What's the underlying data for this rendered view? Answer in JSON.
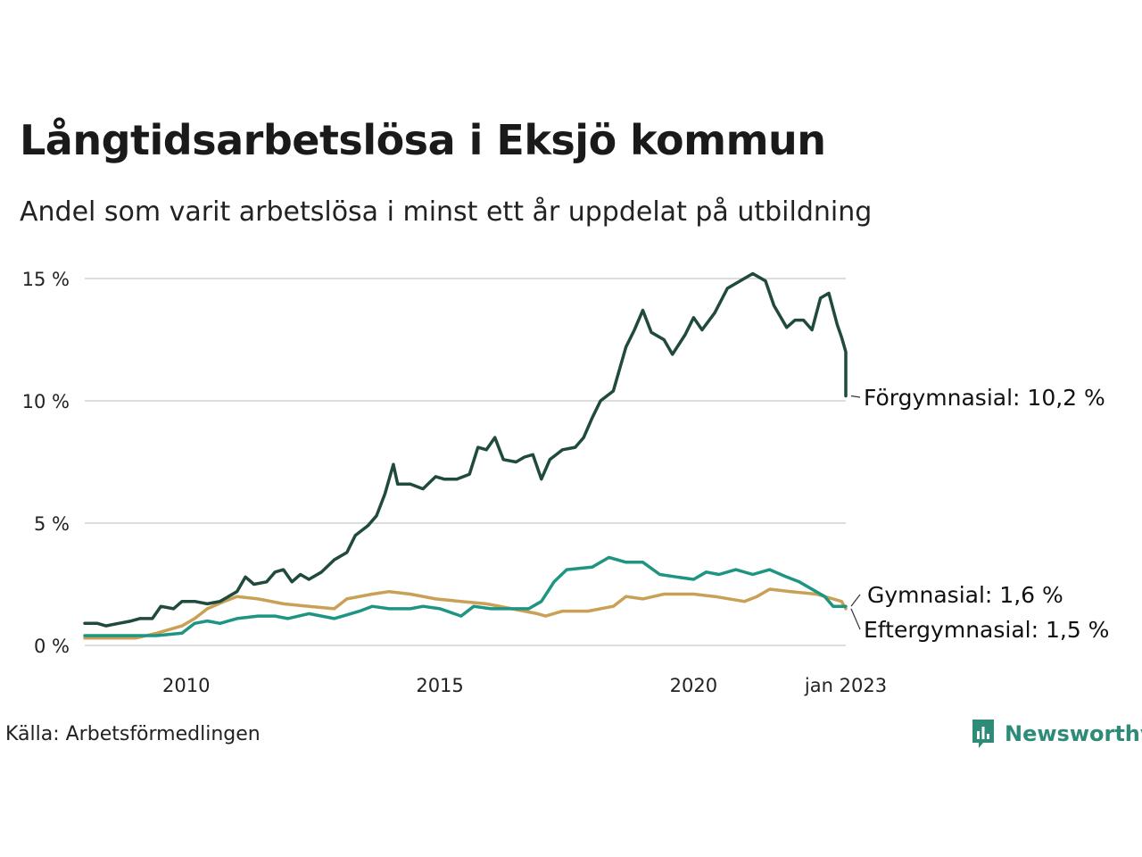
{
  "title": "Långtidsarbetslösa i Eksjö kommun",
  "subtitle": "Andel som varit arbetslösa i minst ett år uppdelat på utbildning",
  "source": "Källa: Arbetsförmedlingen",
  "brand": "Newsworthy",
  "colors": {
    "forgymnasial": "#1f4a3c",
    "gymnasial": "#1e9583",
    "eftergymnasial": "#c9a055",
    "grid": "#dddddd",
    "brand": "#2e8b78"
  },
  "chart_data": {
    "type": "line",
    "title": "Långtidsarbetslösa i Eksjö kommun",
    "subtitle": "Andel som varit arbetslösa i minst ett år uppdelat på utbildning",
    "x_range": [
      "2008-01",
      "2023-01"
    ],
    "ylim": [
      0,
      15
    ],
    "y_ticks": [
      0,
      5,
      10,
      15
    ],
    "y_tick_labels": [
      "0 %",
      "5 %",
      "10 %",
      "15 %"
    ],
    "x_ticks": [
      "2010-01",
      "2015-01",
      "2020-01",
      "2023-01"
    ],
    "x_tick_labels": [
      "2010",
      "2015",
      "2020",
      "jan 2023"
    ],
    "grid": true,
    "legend": "end-of-line labels",
    "series": [
      {
        "key": "forgymnasial",
        "end_label": "Förgymnasial: 10,2 %",
        "points": [
          [
            "2008-01",
            0.9
          ],
          [
            "2008-04",
            0.9
          ],
          [
            "2008-06",
            0.8
          ],
          [
            "2008-09",
            0.9
          ],
          [
            "2008-12",
            1.0
          ],
          [
            "2009-02",
            1.1
          ],
          [
            "2009-05",
            1.1
          ],
          [
            "2009-07",
            1.6
          ],
          [
            "2009-10",
            1.5
          ],
          [
            "2009-12",
            1.8
          ],
          [
            "2010-03",
            1.8
          ],
          [
            "2010-06",
            1.7
          ],
          [
            "2010-09",
            1.8
          ],
          [
            "2010-11",
            2.0
          ],
          [
            "2011-01",
            2.2
          ],
          [
            "2011-03",
            2.8
          ],
          [
            "2011-05",
            2.5
          ],
          [
            "2011-08",
            2.6
          ],
          [
            "2011-10",
            3.0
          ],
          [
            "2011-12",
            3.1
          ],
          [
            "2012-02",
            2.6
          ],
          [
            "2012-04",
            2.9
          ],
          [
            "2012-06",
            2.7
          ],
          [
            "2012-09",
            3.0
          ],
          [
            "2012-12",
            3.5
          ],
          [
            "2013-03",
            3.8
          ],
          [
            "2013-05",
            4.5
          ],
          [
            "2013-08",
            4.9
          ],
          [
            "2013-10",
            5.3
          ],
          [
            "2013-12",
            6.2
          ],
          [
            "2014-02",
            7.4
          ],
          [
            "2014-03",
            6.6
          ],
          [
            "2014-06",
            6.6
          ],
          [
            "2014-09",
            6.4
          ],
          [
            "2014-12",
            6.9
          ],
          [
            "2015-02",
            6.8
          ],
          [
            "2015-05",
            6.8
          ],
          [
            "2015-08",
            7.0
          ],
          [
            "2015-10",
            8.1
          ],
          [
            "2015-12",
            8.0
          ],
          [
            "2016-02",
            8.5
          ],
          [
            "2016-04",
            7.6
          ],
          [
            "2016-07",
            7.5
          ],
          [
            "2016-09",
            7.7
          ],
          [
            "2016-11",
            7.8
          ],
          [
            "2017-01",
            6.8
          ],
          [
            "2017-03",
            7.6
          ],
          [
            "2017-06",
            8.0
          ],
          [
            "2017-09",
            8.1
          ],
          [
            "2017-11",
            8.5
          ],
          [
            "2018-01",
            9.3
          ],
          [
            "2018-03",
            10.0
          ],
          [
            "2018-06",
            10.4
          ],
          [
            "2018-09",
            12.2
          ],
          [
            "2018-11",
            12.9
          ],
          [
            "2019-01",
            13.7
          ],
          [
            "2019-03",
            12.8
          ],
          [
            "2019-06",
            12.5
          ],
          [
            "2019-08",
            11.9
          ],
          [
            "2019-11",
            12.7
          ],
          [
            "2020-01",
            13.4
          ],
          [
            "2020-03",
            12.9
          ],
          [
            "2020-06",
            13.6
          ],
          [
            "2020-09",
            14.6
          ],
          [
            "2020-12",
            14.9
          ],
          [
            "2021-03",
            15.2
          ],
          [
            "2021-06",
            14.9
          ],
          [
            "2021-08",
            13.9
          ],
          [
            "2021-11",
            13.0
          ],
          [
            "2022-01",
            13.3
          ],
          [
            "2022-03",
            13.3
          ],
          [
            "2022-05",
            12.9
          ],
          [
            "2022-07",
            14.2
          ],
          [
            "2022-09",
            14.4
          ],
          [
            "2022-11",
            13.1
          ],
          [
            "2022-12",
            12.6
          ],
          [
            "2023-01",
            12.0
          ],
          [
            "2023-01",
            10.2
          ]
        ]
      },
      {
        "key": "gymnasial",
        "end_label": "Gymnasial:  1,6 %",
        "points": [
          [
            "2008-01",
            0.4
          ],
          [
            "2008-06",
            0.4
          ],
          [
            "2008-12",
            0.4
          ],
          [
            "2009-06",
            0.4
          ],
          [
            "2009-12",
            0.5
          ],
          [
            "2010-03",
            0.9
          ],
          [
            "2010-06",
            1.0
          ],
          [
            "2010-09",
            0.9
          ],
          [
            "2011-01",
            1.1
          ],
          [
            "2011-06",
            1.2
          ],
          [
            "2011-10",
            1.2
          ],
          [
            "2012-01",
            1.1
          ],
          [
            "2012-06",
            1.3
          ],
          [
            "2012-12",
            1.1
          ],
          [
            "2013-06",
            1.4
          ],
          [
            "2013-09",
            1.6
          ],
          [
            "2014-01",
            1.5
          ],
          [
            "2014-06",
            1.5
          ],
          [
            "2014-09",
            1.6
          ],
          [
            "2015-01",
            1.5
          ],
          [
            "2015-06",
            1.2
          ],
          [
            "2015-09",
            1.6
          ],
          [
            "2016-01",
            1.5
          ],
          [
            "2016-06",
            1.5
          ],
          [
            "2016-10",
            1.5
          ],
          [
            "2017-01",
            1.8
          ],
          [
            "2017-04",
            2.6
          ],
          [
            "2017-07",
            3.1
          ],
          [
            "2018-01",
            3.2
          ],
          [
            "2018-05",
            3.6
          ],
          [
            "2018-09",
            3.4
          ],
          [
            "2019-01",
            3.4
          ],
          [
            "2019-05",
            2.9
          ],
          [
            "2019-09",
            2.8
          ],
          [
            "2020-01",
            2.7
          ],
          [
            "2020-04",
            3.0
          ],
          [
            "2020-07",
            2.9
          ],
          [
            "2020-11",
            3.1
          ],
          [
            "2021-03",
            2.9
          ],
          [
            "2021-07",
            3.1
          ],
          [
            "2021-11",
            2.8
          ],
          [
            "2022-02",
            2.6
          ],
          [
            "2022-05",
            2.3
          ],
          [
            "2022-08",
            2.0
          ],
          [
            "2022-10",
            1.6
          ],
          [
            "2023-01",
            1.6
          ]
        ]
      },
      {
        "key": "eftergymnasial",
        "end_label": "Eftergymnasial:  1,5 %",
        "points": [
          [
            "2008-01",
            0.3
          ],
          [
            "2008-06",
            0.3
          ],
          [
            "2009-01",
            0.3
          ],
          [
            "2009-06",
            0.5
          ],
          [
            "2009-12",
            0.8
          ],
          [
            "2010-03",
            1.1
          ],
          [
            "2010-06",
            1.5
          ],
          [
            "2010-10",
            1.8
          ],
          [
            "2011-01",
            2.0
          ],
          [
            "2011-06",
            1.9
          ],
          [
            "2011-12",
            1.7
          ],
          [
            "2012-06",
            1.6
          ],
          [
            "2012-12",
            1.5
          ],
          [
            "2013-03",
            1.9
          ],
          [
            "2013-09",
            2.1
          ],
          [
            "2014-01",
            2.2
          ],
          [
            "2014-06",
            2.1
          ],
          [
            "2014-12",
            1.9
          ],
          [
            "2015-06",
            1.8
          ],
          [
            "2015-12",
            1.7
          ],
          [
            "2016-06",
            1.5
          ],
          [
            "2016-12",
            1.3
          ],
          [
            "2017-02",
            1.2
          ],
          [
            "2017-06",
            1.4
          ],
          [
            "2017-12",
            1.4
          ],
          [
            "2018-06",
            1.6
          ],
          [
            "2018-09",
            2.0
          ],
          [
            "2019-01",
            1.9
          ],
          [
            "2019-06",
            2.1
          ],
          [
            "2020-01",
            2.1
          ],
          [
            "2020-06",
            2.0
          ],
          [
            "2021-01",
            1.8
          ],
          [
            "2021-04",
            2.0
          ],
          [
            "2021-07",
            2.3
          ],
          [
            "2021-12",
            2.2
          ],
          [
            "2022-06",
            2.1
          ],
          [
            "2022-10",
            1.9
          ],
          [
            "2022-12",
            1.8
          ],
          [
            "2023-01",
            1.5
          ]
        ]
      }
    ]
  }
}
